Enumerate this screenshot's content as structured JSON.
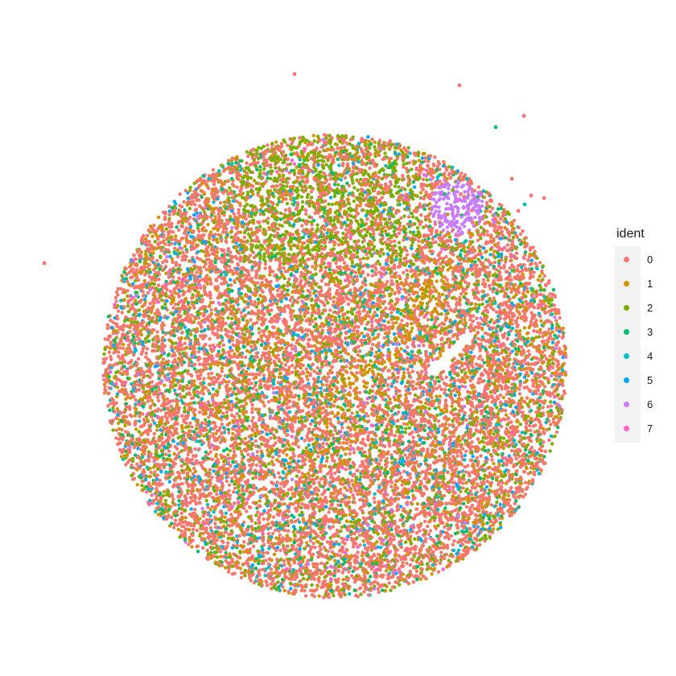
{
  "chart_data": {
    "type": "scatter",
    "title": "",
    "xlabel": "",
    "ylabel": "",
    "axes_visible": false,
    "grid": false,
    "legend_placement": "right",
    "legend_title": "ident",
    "series": [
      {
        "name": "0",
        "color": "#F8766D",
        "share": 0.6
      },
      {
        "name": "1",
        "color": "#CD9600",
        "share": 0.13
      },
      {
        "name": "2",
        "color": "#7CAE00",
        "share": 0.12
      },
      {
        "name": "3",
        "color": "#00BE67",
        "share": 0.06
      },
      {
        "name": "4",
        "color": "#00BFC4",
        "share": 0.03
      },
      {
        "name": "5",
        "color": "#00A9FF",
        "share": 0.04
      },
      {
        "name": "6",
        "color": "#C77CFF",
        "share": 0.01
      },
      {
        "name": "7",
        "color": "#FF61CC",
        "share": 0.01
      }
    ]
  }
}
